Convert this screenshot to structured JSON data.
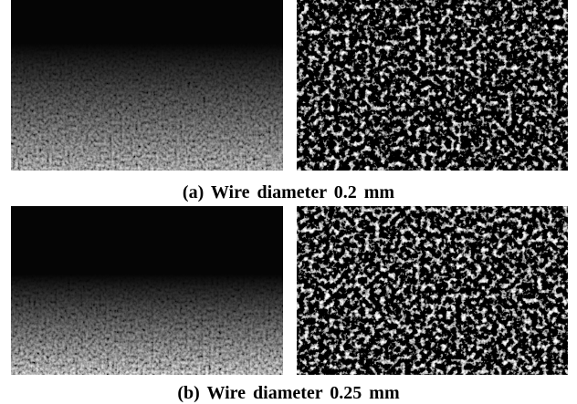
{
  "figure": {
    "captions": [
      "(a) Wire diameter 0.2 mm",
      "(b) Wire diameter 0.25 mm"
    ]
  }
}
